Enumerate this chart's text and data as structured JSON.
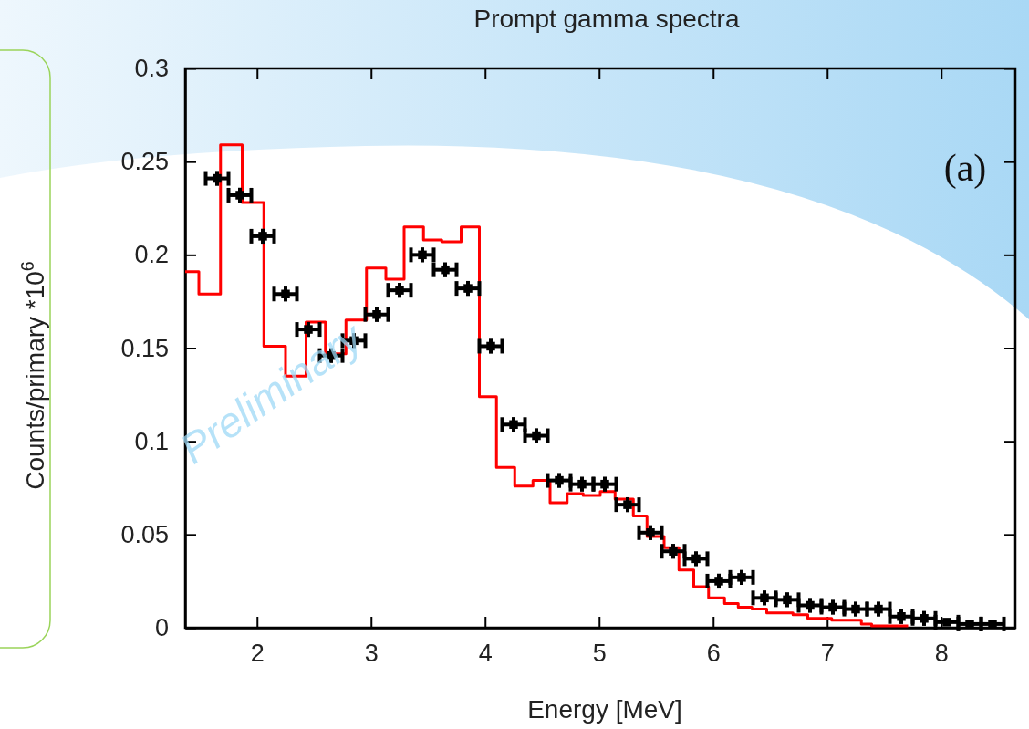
{
  "chart_data": {
    "type": "scatter",
    "title": "Prompt gamma spectra",
    "xlabel": "Energy [MeV]",
    "ylabel": "Counts/primary *10$^{6}$",
    "xlim": [
      1.37,
      8.65
    ],
    "xticks": [
      2,
      3,
      4,
      5,
      6,
      7,
      8
    ],
    "ylim": [
      0,
      0.3
    ],
    "yticks": [
      0,
      0.05,
      0.1,
      0.15,
      0.2,
      0.25,
      0.3
    ],
    "grid": false,
    "annotations": [
      "(a)",
      "Preliminary"
    ],
    "series": [
      {
        "type": "step",
        "color": "#ff0000",
        "x": [
          1.37,
          1.49,
          1.68,
          1.87,
          2.06,
          2.25,
          2.43,
          2.6,
          2.78,
          2.96,
          3.13,
          3.29,
          3.46,
          3.62,
          3.79,
          3.95,
          4.1,
          4.26,
          4.42,
          4.57,
          4.72,
          4.86,
          5.01,
          5.14,
          5.3,
          5.42,
          5.57,
          5.7,
          5.83,
          5.96,
          6.1,
          6.22,
          6.34,
          6.47,
          6.7,
          6.83,
          7.04,
          7.3,
          7.39,
          7.71
        ],
        "values": [
          0.191,
          0.179,
          0.259,
          0.228,
          0.151,
          0.135,
          0.164,
          0.147,
          0.165,
          0.193,
          0.187,
          0.215,
          0.208,
          0.207,
          0.215,
          0.124,
          0.086,
          0.076,
          0.079,
          0.067,
          0.072,
          0.071,
          0.073,
          0.069,
          0.06,
          0.049,
          0.043,
          0.031,
          0.022,
          0.016,
          0.013,
          0.011,
          0.01,
          0.008,
          0.007,
          0.005,
          0.004,
          0.002,
          0.001,
          0.001
        ]
      },
      {
        "color": "#000000",
        "marker": "square",
        "x": [
          1.65,
          1.85,
          2.05,
          2.25,
          2.45,
          2.65,
          2.85,
          3.05,
          3.25,
          3.45,
          3.65,
          3.85,
          4.05,
          4.25,
          4.45,
          4.65,
          4.85,
          5.05,
          5.25,
          5.45,
          5.65,
          5.85,
          6.05,
          6.25,
          6.45,
          6.65,
          6.85,
          7.05,
          7.25,
          7.45,
          7.65,
          7.85,
          8.05,
          8.25,
          8.45
        ],
        "values": [
          0.241,
          0.232,
          0.21,
          0.179,
          0.16,
          0.146,
          0.154,
          0.168,
          0.181,
          0.2,
          0.192,
          0.182,
          0.151,
          0.109,
          0.103,
          0.079,
          0.077,
          0.077,
          0.066,
          0.051,
          0.041,
          0.037,
          0.025,
          0.027,
          0.016,
          0.015,
          0.012,
          0.011,
          0.01,
          0.01,
          0.006,
          0.005,
          0.003,
          0.002,
          0.002
        ],
        "errors": [
          0.004,
          0.004,
          0.004,
          0.004,
          0.004,
          0.004,
          0.004,
          0.004,
          0.004,
          0.004,
          0.004,
          0.004,
          0.004,
          0.004,
          0.004,
          0.004,
          0.004,
          0.004,
          0.004,
          0.004,
          0.004,
          0.004,
          0.004,
          0.004,
          0.004,
          0.004,
          0.004,
          0.004,
          0.004,
          0.004,
          0.004,
          0.004,
          null,
          null,
          null
        ],
        "xerrors": [
          0.1,
          0.1,
          0.1,
          0.1,
          0.1,
          0.1,
          0.1,
          0.1,
          0.1,
          0.1,
          0.1,
          0.1,
          0.1,
          0.1,
          0.1,
          0.1,
          0.1,
          0.1,
          0.1,
          0.1,
          0.1,
          0.1,
          0.1,
          0.1,
          0.1,
          0.1,
          0.1,
          0.1,
          0.1,
          0.1,
          0.1,
          0.1,
          0.1,
          0.1,
          0.1
        ]
      }
    ]
  }
}
